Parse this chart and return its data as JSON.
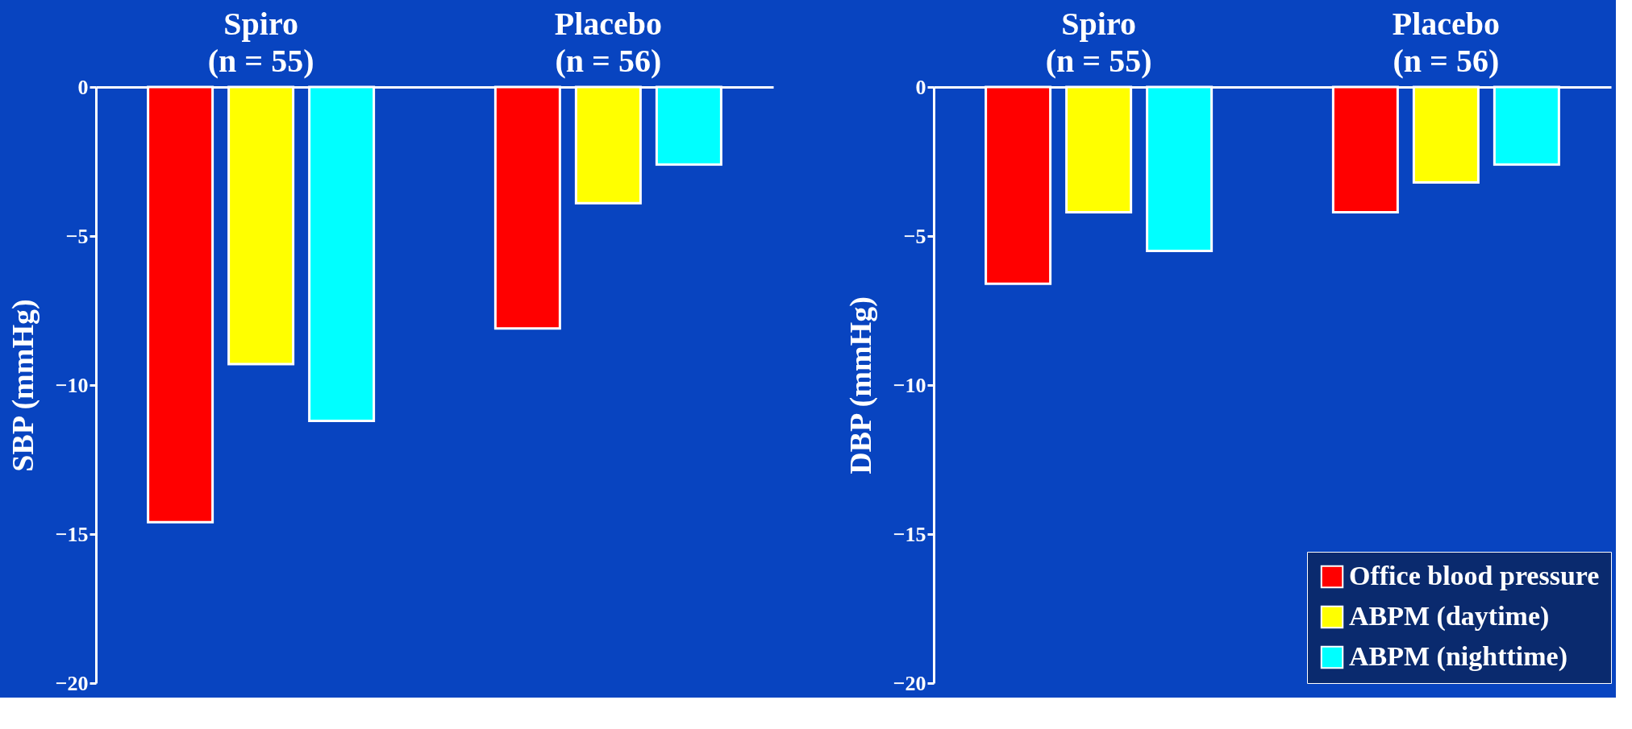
{
  "chart_data": [
    {
      "type": "bar",
      "categories": [
        "Spiro\n(n = 55)",
        "Placebo\n(n = 56)"
      ],
      "ylabel": "SBP (mmHg)",
      "ylim": [
        -20,
        0
      ],
      "yticks": [
        0,
        -5,
        -10,
        -15,
        -20
      ],
      "grid": false,
      "legend": false,
      "series": [
        {
          "color": "#ff0000",
          "values": [
            -14.6,
            -8.1
          ]
        },
        {
          "color": "#ffff00",
          "values": [
            -9.3,
            -3.9
          ]
        },
        {
          "color": "#00ffff",
          "values": [
            -11.2,
            -2.6
          ]
        }
      ]
    },
    {
      "type": "bar",
      "categories": [
        "Spiro\n(n = 55)",
        "Placebo\n(n = 56)"
      ],
      "ylabel": "DBP (mmHg)",
      "ylim": [
        -20,
        0
      ],
      "yticks": [
        0,
        -5,
        -10,
        -15,
        -20
      ],
      "grid": false,
      "legend": "bottom right",
      "series": [
        {
          "name": "Office blood pressure",
          "color": "#ff0000",
          "values": [
            -6.6,
            -4.2
          ]
        },
        {
          "name": "ABPM (daytime)",
          "color": "#ffff00",
          "values": [
            -4.2,
            -3.2
          ]
        },
        {
          "name": "ABPM (nighttime)",
          "color": "#00ffff",
          "values": [
            -5.5,
            -2.6
          ]
        }
      ]
    }
  ]
}
